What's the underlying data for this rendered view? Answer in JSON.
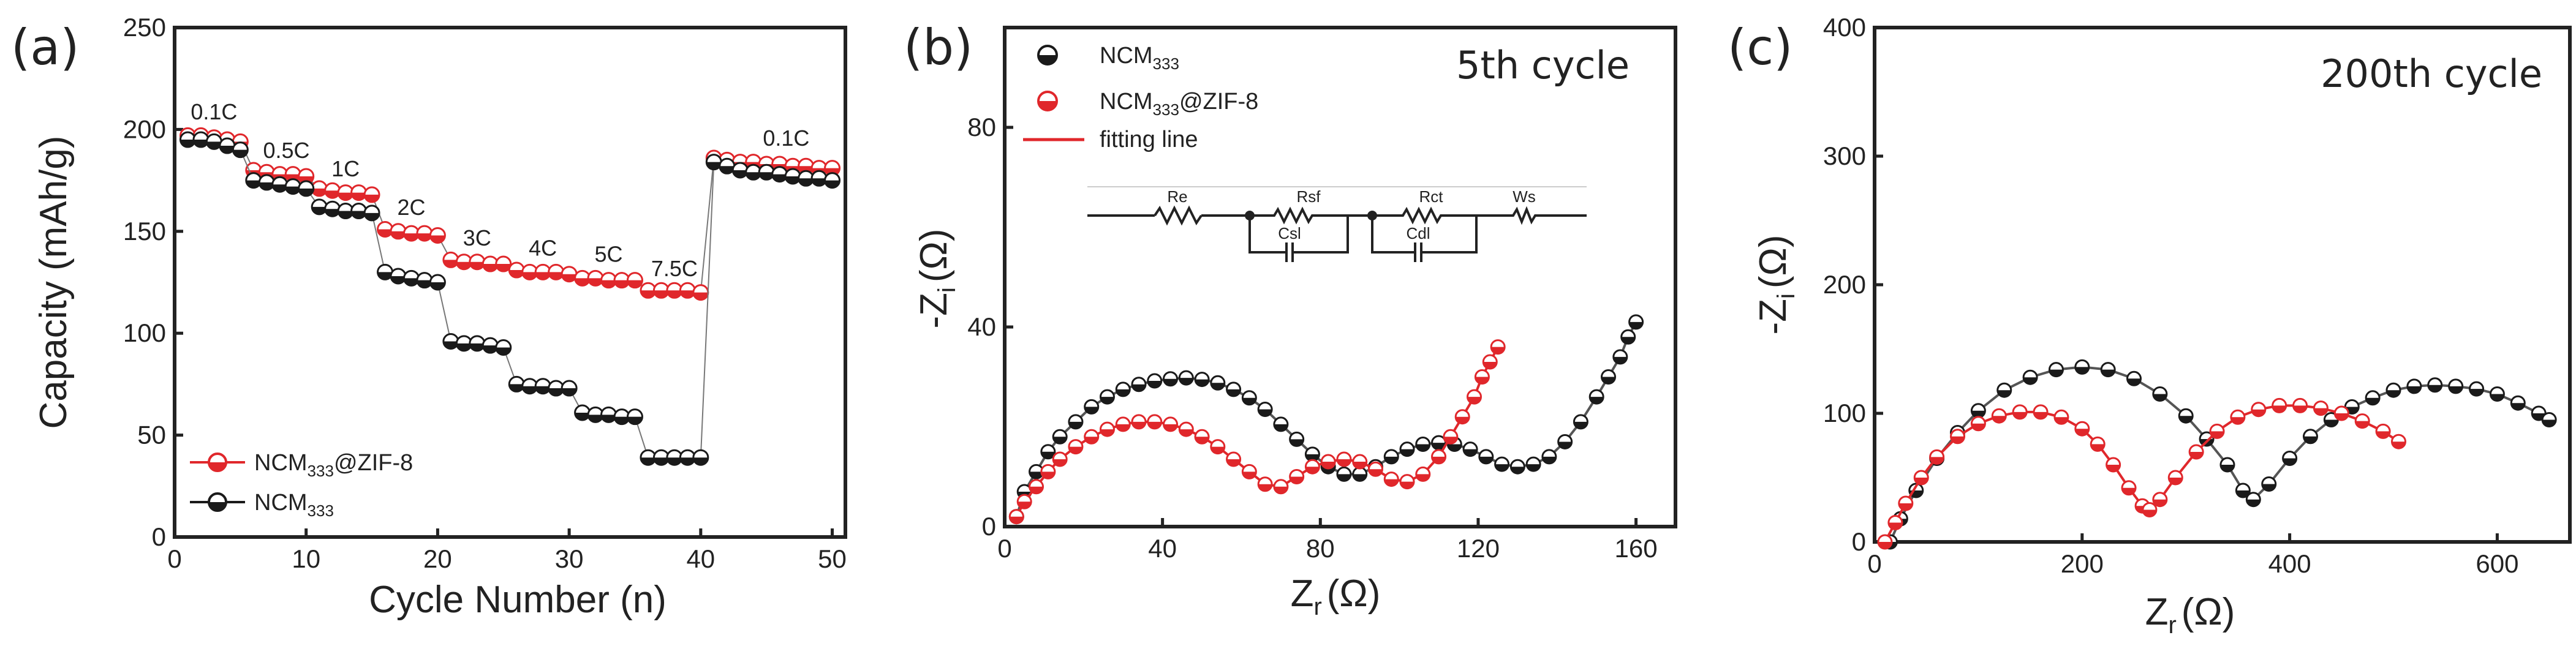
{
  "colors": {
    "ncm333": "#1a1a1a",
    "ncm_zif": "#e0272b",
    "axis": "#222222"
  },
  "chart_data": [
    {
      "type": "scatter",
      "panel_label": "(a)",
      "xlabel": "Cycle Number (n)",
      "ylabel": "Capacity (mAh/g)",
      "xlim": [
        0,
        51
      ],
      "ylim": [
        0,
        250
      ],
      "xticks": [
        0,
        10,
        20,
        30,
        40,
        50
      ],
      "yticks": [
        0,
        50,
        100,
        150,
        200,
        250
      ],
      "legend": [
        "NCM333@ZIF-8",
        "NCM333"
      ],
      "rate_labels": [
        {
          "text": "0.1C",
          "x": 3,
          "y": 205
        },
        {
          "text": "0.5C",
          "x": 8.5,
          "y": 186
        },
        {
          "text": "1C",
          "x": 13,
          "y": 177
        },
        {
          "text": "2C",
          "x": 18,
          "y": 158
        },
        {
          "text": "3C",
          "x": 23,
          "y": 143
        },
        {
          "text": "4C",
          "x": 28,
          "y": 138
        },
        {
          "text": "5C",
          "x": 33,
          "y": 135
        },
        {
          "text": "7.5C",
          "x": 38,
          "y": 128
        },
        {
          "text": "0.1C",
          "x": 46.5,
          "y": 192
        }
      ],
      "series": [
        {
          "name": "NCM333@ZIF-8",
          "x": [
            1,
            2,
            3,
            4,
            5,
            6,
            7,
            8,
            9,
            10,
            11,
            12,
            13,
            14,
            15,
            16,
            17,
            18,
            19,
            20,
            21,
            22,
            23,
            24,
            25,
            26,
            27,
            28,
            29,
            30,
            31,
            32,
            33,
            34,
            35,
            36,
            37,
            38,
            39,
            40,
            41,
            42,
            43,
            44,
            45,
            46,
            47,
            48,
            49,
            50
          ],
          "y": [
            197,
            197,
            196,
            195,
            194,
            180,
            179,
            178,
            178,
            177,
            171,
            170,
            169,
            169,
            168,
            151,
            150,
            149,
            149,
            148,
            136,
            135,
            135,
            134,
            134,
            131,
            130,
            130,
            130,
            129,
            127,
            127,
            126,
            126,
            126,
            121,
            121,
            121,
            121,
            120,
            186,
            185,
            184,
            184,
            183,
            183,
            182,
            182,
            181,
            181
          ]
        },
        {
          "name": "NCM333",
          "x": [
            1,
            2,
            3,
            4,
            5,
            6,
            7,
            8,
            9,
            10,
            11,
            12,
            13,
            14,
            15,
            16,
            17,
            18,
            19,
            20,
            21,
            22,
            23,
            24,
            25,
            26,
            27,
            28,
            29,
            30,
            31,
            32,
            33,
            34,
            35,
            36,
            37,
            38,
            39,
            40,
            41,
            42,
            43,
            44,
            45,
            46,
            47,
            48,
            49,
            50
          ],
          "y": [
            195,
            195,
            194,
            192,
            190,
            175,
            174,
            173,
            172,
            171,
            162,
            161,
            160,
            160,
            159,
            130,
            128,
            127,
            126,
            125,
            96,
            95,
            95,
            94,
            93,
            75,
            74,
            74,
            73,
            73,
            61,
            60,
            60,
            59,
            59,
            39,
            39,
            39,
            39,
            39,
            184,
            182,
            180,
            179,
            179,
            178,
            177,
            176,
            176,
            175
          ]
        }
      ]
    },
    {
      "type": "scatter",
      "panel_label": "(b)",
      "title": "5th cycle",
      "xlabel_main": "Z",
      "xlabel_sub": "r",
      "xlabel_unit": "(Ω)",
      "ylabel_main": "-Z",
      "ylabel_sub": "i",
      "ylabel_unit": "(Ω)",
      "xlim": [
        0,
        170
      ],
      "ylim": [
        0,
        100
      ],
      "xticks": [
        0,
        40,
        80,
        120,
        160
      ],
      "yticks": [
        0,
        40,
        80
      ],
      "legend": [
        "NCM333",
        "NCM333@ZIF-8",
        "fitting line"
      ],
      "circuit": [
        "Re",
        "Rsf",
        "Csl",
        "Rct",
        "Cdl",
        "Ws"
      ],
      "series": [
        {
          "name": "NCM333",
          "x": [
            3,
            5,
            8,
            11,
            14,
            18,
            22,
            26,
            30,
            34,
            38,
            42,
            46,
            50,
            54,
            58,
            62,
            66,
            70,
            74,
            78,
            82,
            86,
            90,
            94,
            98,
            102,
            106,
            110,
            114,
            118,
            122,
            126,
            130,
            134,
            138,
            142,
            146,
            150,
            153,
            156,
            158,
            160
          ],
          "y": [
            2,
            7,
            11,
            15,
            18,
            21,
            24,
            26,
            27.5,
            28.5,
            29.2,
            29.6,
            29.8,
            29.5,
            28.8,
            27.5,
            25.8,
            23.5,
            20.5,
            17.5,
            14.5,
            12,
            10.5,
            10.5,
            12,
            14,
            15.5,
            16.5,
            16.8,
            16.5,
            15.5,
            14,
            12.5,
            12,
            12.5,
            14,
            17,
            21,
            26,
            30,
            34,
            38,
            41
          ]
        },
        {
          "name": "NCM333@ZIF-8",
          "x": [
            3,
            5,
            8,
            11,
            14,
            18,
            22,
            26,
            30,
            34,
            38,
            42,
            46,
            50,
            54,
            58,
            62,
            66,
            70,
            74,
            78,
            82,
            86,
            90,
            94,
            98,
            102,
            106,
            110,
            113,
            116,
            119,
            121,
            123,
            125
          ],
          "y": [
            2,
            5,
            8,
            11,
            13.5,
            16,
            18,
            19.5,
            20.5,
            21,
            21,
            20.5,
            19.5,
            18,
            16,
            13.5,
            11,
            8.5,
            8,
            10,
            12,
            13,
            13.5,
            13,
            11.5,
            9.5,
            9,
            10.5,
            14,
            18,
            22,
            26,
            30,
            33,
            36
          ]
        }
      ]
    },
    {
      "type": "scatter",
      "panel_label": "(c)",
      "title": "200th cycle",
      "xlabel_main": "Z",
      "xlabel_sub": "r",
      "xlabel_unit": "(Ω)",
      "ylabel_main": "-Z",
      "ylabel_sub": "i",
      "ylabel_unit": "(Ω)",
      "xlim": [
        0,
        670
      ],
      "ylim": [
        0,
        400
      ],
      "xticks": [
        0,
        200,
        400,
        600
      ],
      "yticks": [
        0,
        100,
        200,
        300,
        400
      ],
      "series": [
        {
          "name": "NCM333",
          "x": [
            15,
            25,
            40,
            60,
            80,
            100,
            125,
            150,
            175,
            200,
            225,
            250,
            275,
            300,
            320,
            340,
            355,
            365,
            380,
            400,
            420,
            440,
            460,
            480,
            500,
            520,
            540,
            560,
            580,
            600,
            620,
            640,
            650
          ],
          "y": [
            0,
            18,
            40,
            65,
            85,
            102,
            118,
            128,
            134,
            136,
            134,
            127,
            115,
            98,
            80,
            60,
            40,
            33,
            45,
            65,
            82,
            95,
            105,
            112,
            118,
            121,
            122,
            121,
            119,
            115,
            108,
            100,
            95
          ]
        },
        {
          "name": "NCM333@ZIF-8",
          "x": [
            10,
            20,
            30,
            45,
            60,
            80,
            100,
            120,
            140,
            160,
            180,
            200,
            215,
            230,
            245,
            258,
            265,
            275,
            290,
            310,
            330,
            350,
            370,
            390,
            410,
            430,
            450,
            470,
            490,
            505
          ],
          "y": [
            0,
            15,
            30,
            50,
            66,
            82,
            92,
            98,
            101,
            101,
            97,
            88,
            76,
            60,
            42,
            28,
            25,
            33,
            50,
            70,
            86,
            97,
            103,
            106,
            106,
            104,
            100,
            94,
            86,
            78
          ]
        }
      ]
    }
  ]
}
